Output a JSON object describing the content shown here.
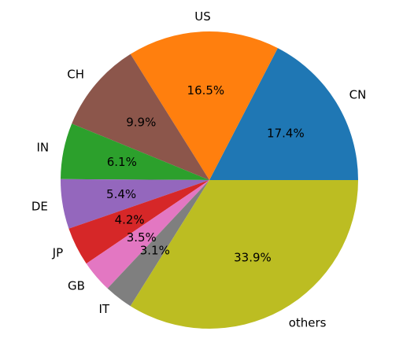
{
  "chart_data": {
    "type": "pie",
    "title": "",
    "start_angle_deg": 0,
    "direction": "counterclockwise",
    "slices": [
      {
        "label": "CN",
        "value": 17.4,
        "pct_label": "17.4%",
        "color": "#1f77b4"
      },
      {
        "label": "US",
        "value": 16.5,
        "pct_label": "16.5%",
        "color": "#ff7f0e"
      },
      {
        "label": "CH",
        "value": 9.9,
        "pct_label": "9.9%",
        "color": "#8c564b"
      },
      {
        "label": "IN",
        "value": 6.1,
        "pct_label": "6.1%",
        "color": "#2ca02c"
      },
      {
        "label": "DE",
        "value": 5.4,
        "pct_label": "5.4%",
        "color": "#9467bd"
      },
      {
        "label": "JP",
        "value": 4.2,
        "pct_label": "4.2%",
        "color": "#d62728"
      },
      {
        "label": "GB",
        "value": 3.5,
        "pct_label": "3.5%",
        "color": "#e377c2"
      },
      {
        "label": "IT",
        "value": 3.1,
        "pct_label": "3.1%",
        "color": "#7f7f7f"
      },
      {
        "label": "others",
        "value": 33.9,
        "pct_label": "33.9%",
        "color": "#bcbd22"
      }
    ]
  }
}
